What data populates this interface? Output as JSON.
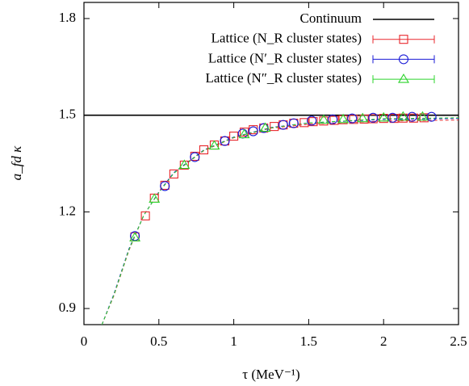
{
  "chart_data": {
    "type": "scatter",
    "xlabel": "τ   (MeV⁻¹)",
    "ylabel": "a_fd κ",
    "xlim": [
      0,
      2.5
    ],
    "ylim": [
      0.85,
      1.85
    ],
    "xticks": [
      0,
      0.5,
      1,
      1.5,
      2,
      2.5
    ],
    "yticks": [
      0.9,
      1.2,
      1.5,
      1.8
    ],
    "grid": false,
    "legend": "upper right",
    "series": [
      {
        "name": "Continuum",
        "color": "#000000",
        "marker": "line",
        "x": [
          0,
          2.5
        ],
        "values": [
          1.5,
          1.5
        ]
      },
      {
        "name": "Lattice (N_R cluster states)",
        "color": "#e8262b",
        "marker": "square",
        "x": [
          0.34,
          0.41,
          0.47,
          0.54,
          0.6,
          0.67,
          0.74,
          0.8,
          0.87,
          0.94,
          1.0,
          1.07,
          1.13,
          1.2,
          1.27,
          1.33,
          1.4,
          1.47,
          1.53,
          1.6,
          1.67,
          1.73,
          1.8,
          1.87,
          1.93,
          2.0,
          2.07,
          2.13,
          2.2,
          2.27
        ],
        "values": [
          1.1225,
          1.1875,
          1.2425,
          1.2825,
          1.3175,
          1.345,
          1.3725,
          1.3925,
          1.4075,
          1.42,
          1.435,
          1.4475,
          1.455,
          1.46,
          1.465,
          1.47,
          1.475,
          1.477,
          1.48,
          1.482,
          1.484,
          1.486,
          1.487,
          1.488,
          1.489,
          1.49,
          1.49,
          1.491,
          1.491,
          1.492
        ]
      },
      {
        "name": "Lattice (N′_R cluster states)",
        "color": "#1a1ad6",
        "marker": "circle",
        "x": [
          0.34,
          0.54,
          0.74,
          0.94,
          1.06,
          1.13,
          1.2,
          1.33,
          1.4,
          1.52,
          1.66,
          1.79,
          1.93,
          2.06,
          2.19,
          2.32
        ],
        "values": [
          1.125,
          1.28,
          1.37,
          1.42,
          1.443,
          1.45,
          1.46,
          1.47,
          1.475,
          1.483,
          1.487,
          1.49,
          1.492,
          1.492,
          1.495,
          1.495
        ]
      },
      {
        "name": "Lattice (N″_R cluster states)",
        "color": "#2bd42b",
        "marker": "triangle",
        "x": [
          0.34,
          0.47,
          0.67,
          0.87,
          1.07,
          1.21,
          1.6,
          1.73,
          1.86,
          2.0,
          2.13,
          2.26
        ],
        "values": [
          1.12,
          1.24,
          1.345,
          1.405,
          1.44,
          1.46,
          1.485,
          1.487,
          1.49,
          1.492,
          1.495,
          1.495
        ]
      }
    ],
    "fit_curves": [
      {
        "color": "#e8262b",
        "x": [
          0.12,
          0.2,
          0.3,
          0.4,
          0.5,
          0.6,
          0.8,
          1.0,
          1.25,
          1.5,
          2.0,
          2.5
        ],
        "values": [
          0.85,
          0.94,
          1.08,
          1.19,
          1.26,
          1.32,
          1.39,
          1.43,
          1.46,
          1.472,
          1.482,
          1.485
        ]
      },
      {
        "color": "#1a1ad6",
        "x": [
          0.12,
          0.2,
          0.3,
          0.4,
          0.5,
          0.6,
          0.8,
          1.0,
          1.25,
          1.5,
          2.0,
          2.5
        ],
        "values": [
          0.85,
          0.945,
          1.085,
          1.19,
          1.262,
          1.322,
          1.392,
          1.432,
          1.462,
          1.476,
          1.487,
          1.49
        ]
      },
      {
        "color": "#2bd42b",
        "x": [
          0.12,
          0.2,
          0.3,
          0.4,
          0.5,
          0.6,
          0.8,
          1.0,
          1.25,
          1.5,
          2.0,
          2.5
        ],
        "values": [
          0.85,
          0.942,
          1.082,
          1.19,
          1.26,
          1.32,
          1.391,
          1.431,
          1.461,
          1.476,
          1.489,
          1.492
        ]
      }
    ]
  }
}
